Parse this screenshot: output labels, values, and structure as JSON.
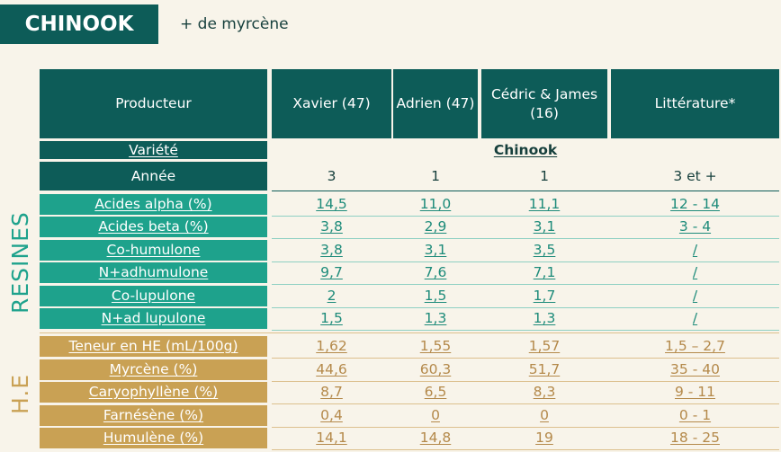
{
  "title": "CHINOOK",
  "subtitle": "+ de myrcène",
  "sections": {
    "resines": "RESINES",
    "he": "H.E"
  },
  "header": {
    "label": "Producteur",
    "columns": [
      "Xavier (47)",
      "Adrien (47)",
      "Cédric & James (16)",
      "Littérature*"
    ]
  },
  "variety": {
    "label": "Variété",
    "value": "Chinook"
  },
  "year": {
    "label": "Année",
    "values": [
      "3",
      "1",
      "1",
      "3 et +"
    ]
  },
  "resines_rows": [
    {
      "label": "Acides alpha (%)",
      "values": [
        "14,5",
        "11,0",
        "11,1",
        "12 - 14"
      ]
    },
    {
      "label": "Acides beta (%)",
      "values": [
        "3,8",
        "2,9",
        "3,1",
        "3 - 4"
      ]
    },
    {
      "label": "Co-humulone",
      "values": [
        "3,8",
        "3,1",
        "3,5",
        "/"
      ]
    },
    {
      "label": "N+adhumulone",
      "values": [
        "9,7",
        "7,6",
        "7,1",
        "/"
      ]
    },
    {
      "label": "Co-lupulone",
      "values": [
        "2",
        "1,5",
        "1,7",
        "/"
      ]
    },
    {
      "label": "N+ad lupulone",
      "values": [
        "1,5",
        "1,3",
        "1,3",
        "/"
      ]
    }
  ],
  "he_rows": [
    {
      "label": "Teneur en HE (mL/100g)",
      "values": [
        "1,62",
        "1,55",
        "1,57",
        "1,5 – 2,7"
      ]
    },
    {
      "label": "Myrcène (%)",
      "values": [
        "44,6",
        "60,3",
        "51,7",
        "35 - 40"
      ]
    },
    {
      "label": "Caryophyllène (%)",
      "values": [
        "8,7",
        "6,5",
        "8,3",
        "9 - 11"
      ]
    },
    {
      "label": "Farnésène (%)",
      "values": [
        "0,4",
        "0",
        "0",
        "0 - 1"
      ]
    },
    {
      "label": "Humulène (%)",
      "values": [
        "14,1",
        "14,8",
        "19",
        "18 - 25"
      ]
    }
  ],
  "colors": {
    "dark": "#0d5c58",
    "green": "#1ea28c",
    "gold": "#c9a154",
    "background": "#f8f4ea"
  }
}
